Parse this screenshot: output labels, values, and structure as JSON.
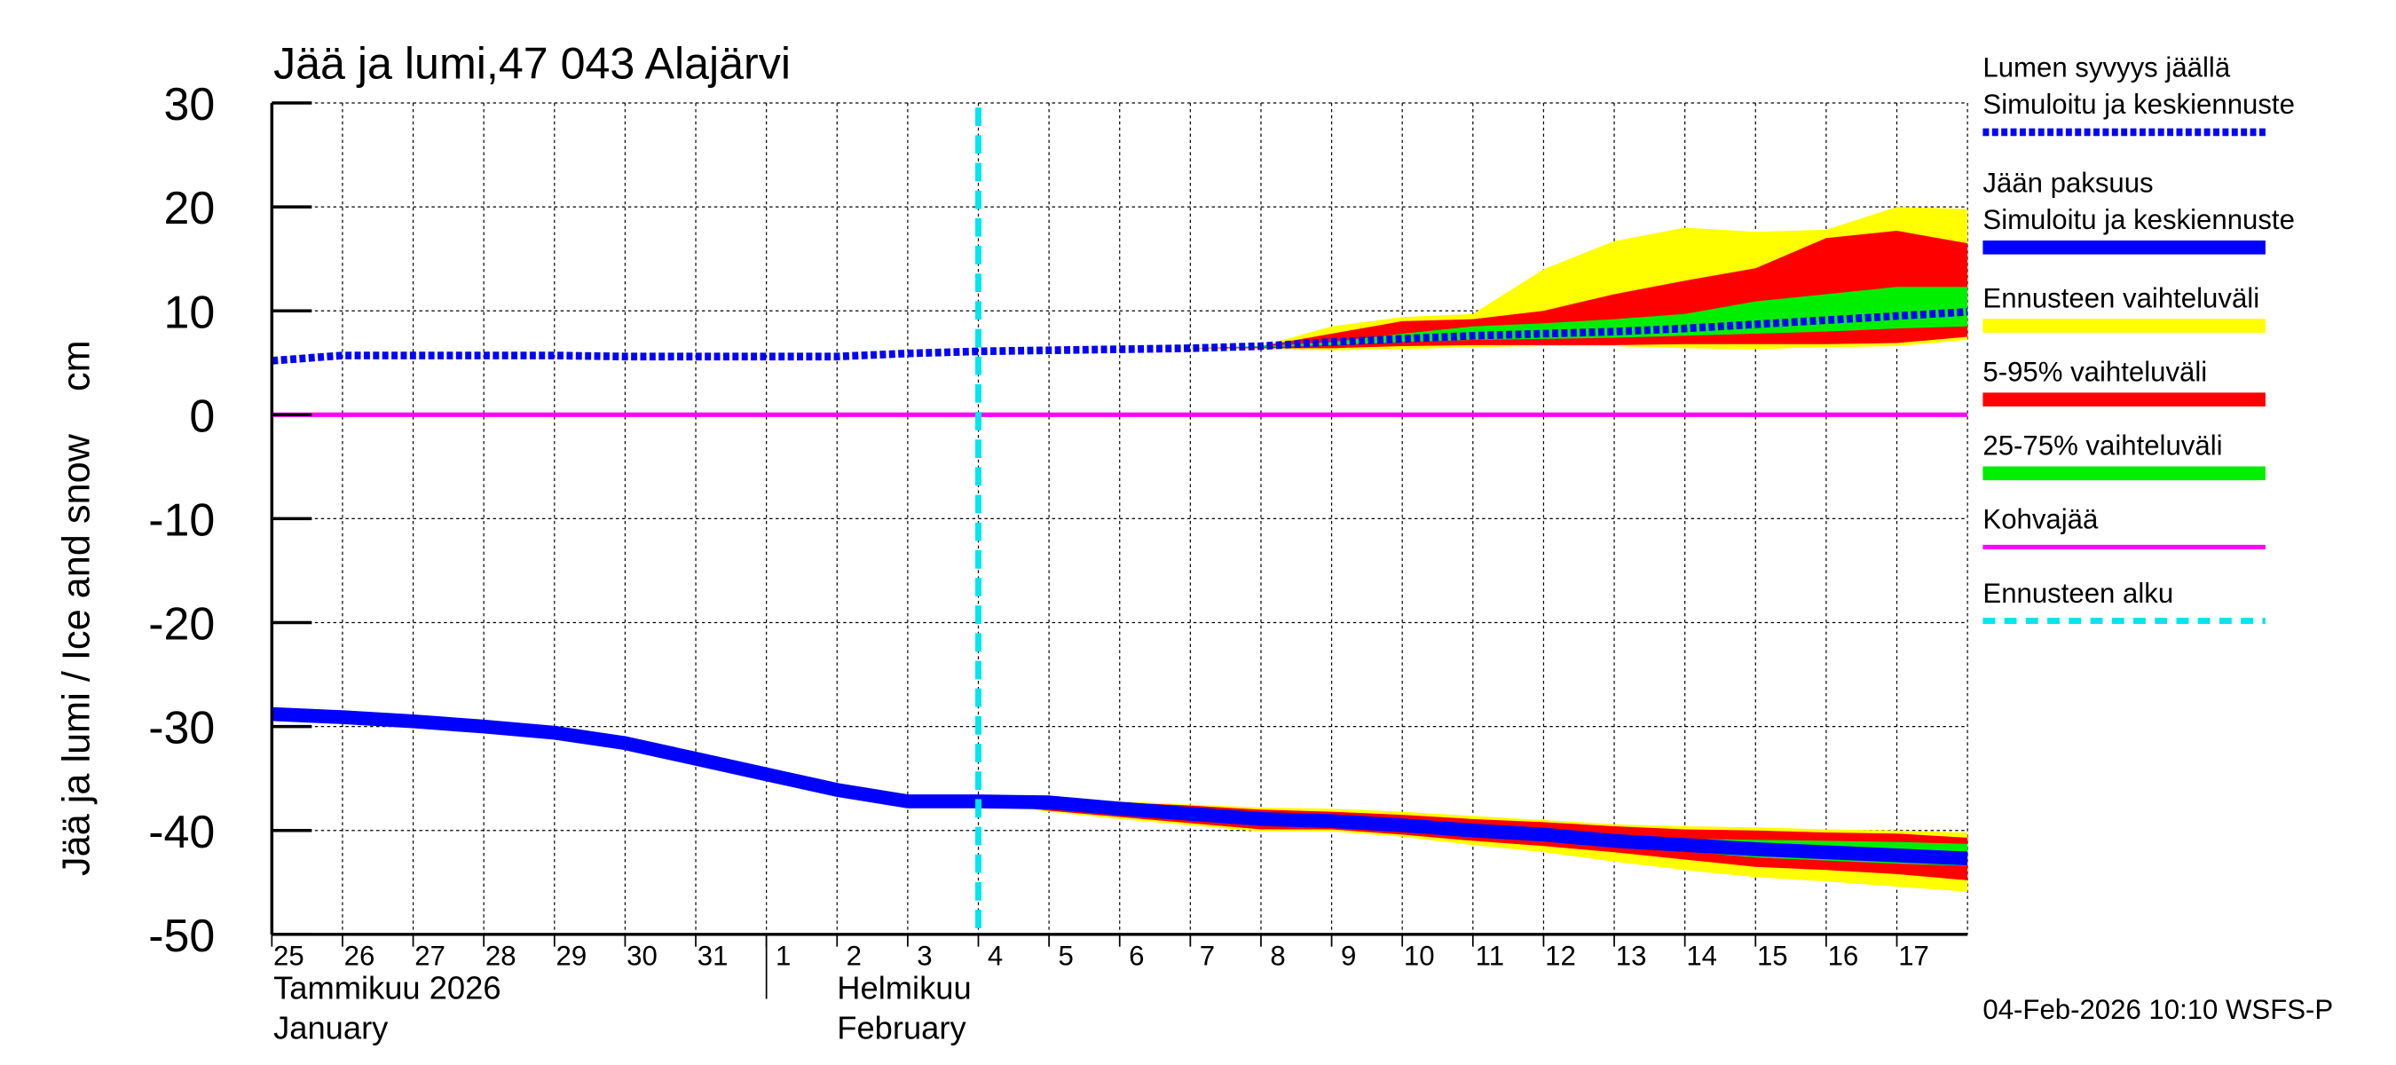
{
  "chart_data": {
    "type": "area",
    "title": "Jää ja lumi,47 043 Alajärvi",
    "ylabel": "Jää ja lumi / Ice and snow    cm",
    "ylim": [
      -50,
      30
    ],
    "yticks": [
      30,
      20,
      10,
      0,
      -10,
      -20,
      -30,
      -40,
      -50
    ],
    "grid": true,
    "legend_placement": "right",
    "x_tick_labels": [
      "25",
      "26",
      "27",
      "28",
      "29",
      "30",
      "31",
      "1",
      "2",
      "3",
      "4",
      "5",
      "6",
      "7",
      "8",
      "9",
      "10",
      "11",
      "12",
      "13",
      "14",
      "15",
      "16",
      "17"
    ],
    "month_labels": [
      {
        "fi": "Tammikuu  2026",
        "en": "January",
        "start": "2026-01-25"
      },
      {
        "fi": "Helmikuu",
        "en": "February",
        "start": "2026-02-01"
      }
    ],
    "dates": [
      "2026-01-25",
      "2026-01-26",
      "2026-01-27",
      "2026-01-28",
      "2026-01-29",
      "2026-01-30",
      "2026-01-31",
      "2026-02-01",
      "2026-02-02",
      "2026-02-03",
      "2026-02-04",
      "2026-02-05",
      "2026-02-06",
      "2026-02-07",
      "2026-02-08",
      "2026-02-09",
      "2026-02-10",
      "2026-02-11",
      "2026-02-12",
      "2026-02-13",
      "2026-02-14",
      "2026-02-15",
      "2026-02-16",
      "2026-02-17",
      "2026-02-18"
    ],
    "forecast_start": "2026-02-04",
    "snow_depth": [
      5.2,
      5.7,
      5.7,
      5.7,
      5.7,
      5.6,
      5.6,
      5.6,
      5.6,
      5.9,
      6.1,
      6.2,
      6.3,
      6.4,
      6.6,
      7.0,
      7.3,
      7.6,
      7.8,
      8.0,
      8.3,
      8.7,
      9.1,
      9.5,
      9.9
    ],
    "snow_bands_from": "2026-02-04",
    "snow_range_max": [
      6.1,
      6.2,
      6.3,
      6.4,
      6.6,
      8.5,
      9.4,
      9.7,
      14.0,
      16.7,
      18.0,
      17.6,
      17.8,
      20.0,
      19.8
    ],
    "snow_range_min": [
      6.1,
      6.2,
      6.3,
      6.3,
      6.3,
      6.2,
      6.3,
      6.5,
      6.6,
      6.6,
      6.4,
      6.3,
      6.5,
      6.6,
      7.2
    ],
    "snow_p95": [
      6.1,
      6.2,
      6.3,
      6.4,
      6.6,
      7.8,
      9.0,
      9.2,
      10.0,
      11.6,
      12.9,
      14.1,
      17.0,
      17.7,
      16.5
    ],
    "snow_p5": [
      6.1,
      6.2,
      6.3,
      6.4,
      6.4,
      6.4,
      6.6,
      6.7,
      6.7,
      6.7,
      6.8,
      6.8,
      6.8,
      6.9,
      7.5
    ],
    "snow_p75": [
      6.1,
      6.2,
      6.3,
      6.4,
      6.6,
      7.0,
      7.8,
      8.5,
      8.8,
      9.2,
      9.7,
      10.9,
      11.6,
      12.3,
      12.3
    ],
    "snow_p25": [
      6.1,
      6.2,
      6.3,
      6.4,
      6.5,
      6.7,
      7.0,
      7.2,
      7.3,
      7.4,
      7.6,
      7.8,
      8.0,
      8.3,
      8.5
    ],
    "ice_thickness": [
      -28.8,
      -29.1,
      -29.5,
      -30.0,
      -30.6,
      -31.6,
      -33.1,
      -34.6,
      -36.1,
      -37.2,
      -37.2,
      -37.3,
      -37.9,
      -38.4,
      -38.9,
      -39.1,
      -39.5,
      -40.0,
      -40.4,
      -41.0,
      -41.4,
      -41.8,
      -42.1,
      -42.4,
      -42.7
    ],
    "ice_range_max": [
      -37.2,
      -37.1,
      -37.2,
      -37.5,
      -37.8,
      -37.9,
      -38.2,
      -38.6,
      -39.0,
      -39.4,
      -39.6,
      -39.7,
      -39.9,
      -40.0,
      -40.2
    ],
    "ice_range_min": [
      -37.3,
      -38.2,
      -38.9,
      -39.5,
      -40.1,
      -40.1,
      -40.6,
      -41.4,
      -42.1,
      -43.0,
      -43.8,
      -44.5,
      -44.9,
      -45.4,
      -45.9
    ],
    "ice_p95": [
      -37.2,
      -37.2,
      -37.3,
      -37.6,
      -38.0,
      -38.2,
      -38.5,
      -38.9,
      -39.2,
      -39.6,
      -39.9,
      -40.0,
      -40.2,
      -40.3,
      -40.7
    ],
    "ice_p5": [
      -37.3,
      -38.1,
      -38.7,
      -39.3,
      -39.9,
      -39.9,
      -40.4,
      -41.0,
      -41.5,
      -42.1,
      -42.8,
      -43.5,
      -43.8,
      -44.2,
      -44.8
    ],
    "ice_p75": [
      -37.2,
      -37.2,
      -37.6,
      -38.1,
      -38.6,
      -38.8,
      -39.2,
      -39.6,
      -40.0,
      -40.5,
      -40.8,
      -40.9,
      -41.0,
      -41.1,
      -41.3
    ],
    "ice_p25": [
      -37.2,
      -37.4,
      -38.2,
      -38.7,
      -39.2,
      -39.4,
      -39.8,
      -40.4,
      -40.8,
      -41.5,
      -42.0,
      -42.6,
      -42.9,
      -43.2,
      -43.4
    ],
    "slush_ice": 0,
    "colors": {
      "snow": "#0000ff",
      "ice": "#0000ff",
      "range": "#ffff00",
      "p5_95": "#ff0000",
      "p25_75": "#00ee00",
      "slush": "#ff00ff",
      "forecast_start": "#00e5ee"
    },
    "legend": [
      {
        "label": "Lumen syvyys jäällä",
        "label2": "Simuloitu ja keskiennuste",
        "style": "dotted-blue"
      },
      {
        "label": "Jään paksuus",
        "label2": "Simuloitu ja keskiennuste",
        "style": "thick-blue"
      },
      {
        "label": "Ennusteen vaihteluväli",
        "style": "yellow"
      },
      {
        "label": "5-95% vaihteluväli",
        "style": "red"
      },
      {
        "label": "25-75% vaihteluväli",
        "style": "green"
      },
      {
        "label": "Kohvajää",
        "style": "magenta"
      },
      {
        "label": "Ennusteen alku",
        "style": "cyan-dashed"
      }
    ],
    "footer": "04-Feb-2026 10:10 WSFS-P"
  }
}
